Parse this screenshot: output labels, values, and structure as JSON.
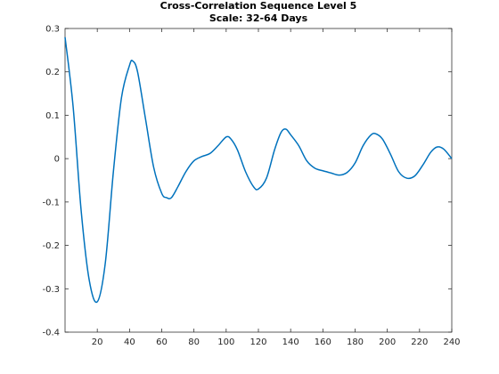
{
  "chart_data": {
    "type": "line",
    "title": "Cross-Correlation Sequence Level 5",
    "subtitle": "Scale: 32-64 Days",
    "xlabel": "",
    "ylabel": "",
    "xlim": [
      0,
      240
    ],
    "ylim": [
      -0.4,
      0.3
    ],
    "xticks": [
      20,
      40,
      60,
      80,
      100,
      120,
      140,
      160,
      180,
      200,
      220,
      240
    ],
    "yticks": [
      -0.4,
      -0.3,
      -0.2,
      -0.1,
      0,
      0.1,
      0.2,
      0.3
    ],
    "ytick_labels": [
      "-0.4",
      "-0.3",
      "-0.2",
      "-0.1",
      "0",
      "0.1",
      "0.2",
      "0.3"
    ],
    "grid": false,
    "legend": "none",
    "line_color": "#0072BD",
    "series": [
      {
        "x": [
          0,
          5,
          10,
          15,
          20,
          25,
          30,
          35,
          40,
          42,
          45,
          50,
          55,
          60,
          63,
          66,
          70,
          75,
          80,
          85,
          90,
          95,
          100,
          103,
          107,
          112,
          117,
          120,
          125,
          130,
          134,
          137,
          140,
          145,
          150,
          155,
          160,
          165,
          170,
          175,
          180,
          185,
          190,
          193,
          197,
          202,
          207,
          212,
          217,
          222,
          227,
          231,
          235,
          240
        ],
        "y": [
          0.28,
          0.12,
          -0.12,
          -0.28,
          -0.33,
          -0.24,
          -0.03,
          0.14,
          0.215,
          0.225,
          0.2,
          0.09,
          -0.02,
          -0.08,
          -0.09,
          -0.09,
          -0.065,
          -0.03,
          -0.005,
          0.005,
          0.012,
          0.03,
          0.05,
          0.045,
          0.02,
          -0.03,
          -0.065,
          -0.07,
          -0.045,
          0.02,
          0.06,
          0.068,
          0.055,
          0.03,
          -0.005,
          -0.022,
          -0.028,
          -0.033,
          -0.038,
          -0.032,
          -0.01,
          0.03,
          0.055,
          0.057,
          0.045,
          0.01,
          -0.03,
          -0.045,
          -0.04,
          -0.015,
          0.015,
          0.027,
          0.022,
          0.0
        ]
      }
    ]
  }
}
